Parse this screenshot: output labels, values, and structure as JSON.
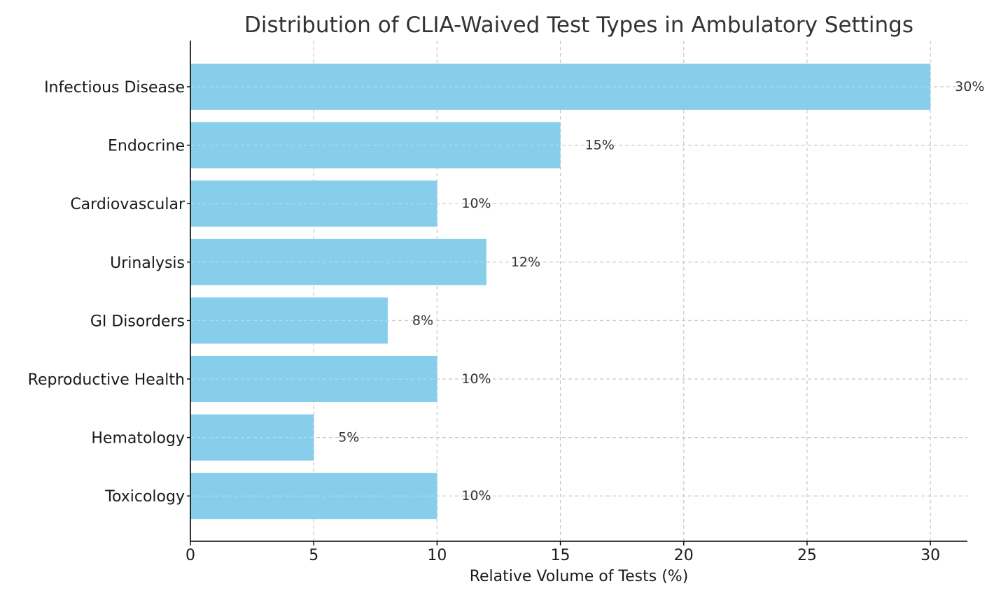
{
  "chart_data": {
    "type": "bar",
    "orientation": "horizontal",
    "title": "Distribution of CLIA-Waived Test Types in Ambulatory Settings",
    "xlabel": "Relative Volume of Tests (%)",
    "ylabel": "",
    "categories": [
      "Infectious Disease",
      "Endocrine",
      "Cardiovascular",
      "Urinalysis",
      "GI Disorders",
      "Reproductive Health",
      "Hematology",
      "Toxicology"
    ],
    "values": [
      30,
      15,
      10,
      12,
      8,
      10,
      5,
      10
    ],
    "data_labels": [
      "30%",
      "15%",
      "10%",
      "12%",
      "8%",
      "10%",
      "5%",
      "10%"
    ],
    "xlim": [
      0,
      31.5
    ],
    "xticks": [
      0,
      5,
      10,
      15,
      20,
      25,
      30
    ],
    "grid": true,
    "bar_color": "#87CEEB"
  }
}
